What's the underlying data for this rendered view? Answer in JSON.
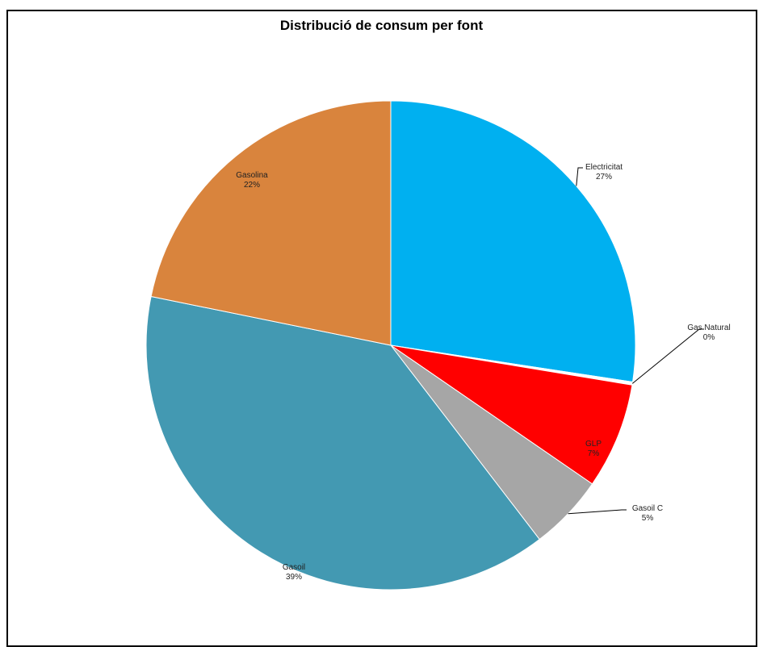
{
  "chart_data": {
    "type": "pie",
    "title": "Distribució de consum per font",
    "slices": [
      {
        "name": "Electricitat",
        "label": "27%",
        "value": 27.4,
        "color": "#00B0F0"
      },
      {
        "name": "Gas Natural",
        "label": "0%",
        "value": 0.2,
        "color": "#FFFFFF"
      },
      {
        "name": "GLP",
        "label": "7%",
        "value": 7.0,
        "color": "#FF0000"
      },
      {
        "name": "Gasoil C",
        "label": "5%",
        "value": 5.0,
        "color": "#A6A6A6"
      },
      {
        "name": "Gasoil",
        "label": "39%",
        "value": 38.6,
        "color": "#4399B2"
      },
      {
        "name": "Gasolina",
        "label": "22%",
        "value": 21.8,
        "color": "#D9843D"
      }
    ],
    "grid": false,
    "legend": "none"
  }
}
